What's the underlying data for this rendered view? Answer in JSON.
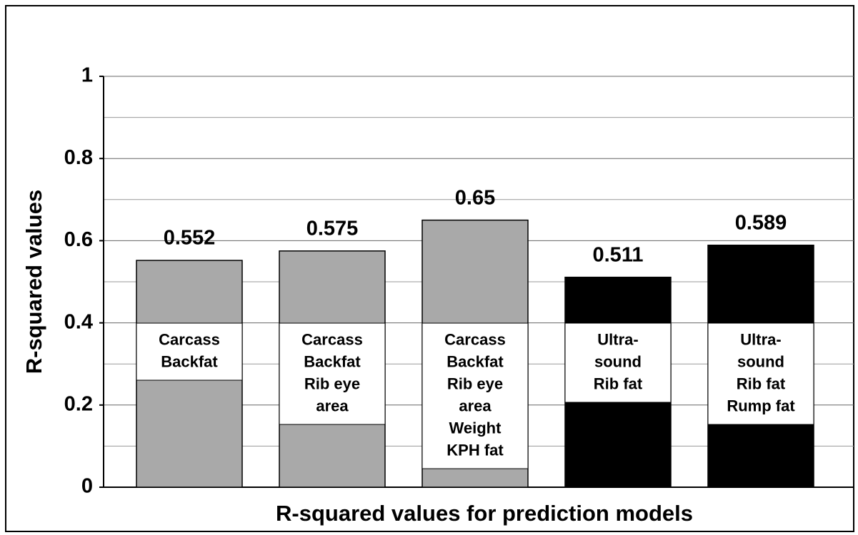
{
  "chart_data": {
    "type": "bar",
    "xlabel": "R-squared values for prediction models",
    "ylabel": "R-squared values",
    "categories": [
      [
        "Carcass",
        "Backfat"
      ],
      [
        "Carcass",
        "Backfat",
        "Rib eye",
        "area"
      ],
      [
        "Carcass",
        "Backfat",
        "Rib eye",
        "area",
        "Weight",
        "KPH fat"
      ],
      [
        "Ultra-",
        "sound",
        "Rib fat"
      ],
      [
        "Ultra-",
        "sound",
        "Rib fat",
        "Rump fat"
      ]
    ],
    "values": [
      0.552,
      0.575,
      0.65,
      0.511,
      0.589
    ],
    "colors": [
      "#a9a9a9",
      "#a9a9a9",
      "#a9a9a9",
      "#000000",
      "#000000"
    ],
    "ylim": [
      0,
      1
    ],
    "yticks": [
      0,
      0.2,
      0.4,
      0.6,
      0.8,
      1
    ],
    "minor_yticks": [
      0.1,
      0.3,
      0.5,
      0.7,
      0.9
    ],
    "grid": true
  }
}
